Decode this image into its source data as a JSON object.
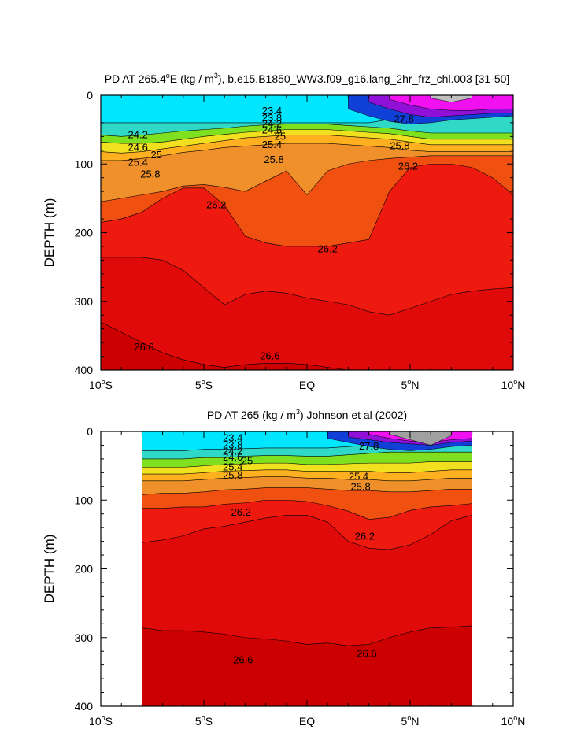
{
  "chart_data": [
    {
      "type": "contour",
      "title": "PD AT 265.4°E (kg / m³), b.e15.B1850_WW3.f09_g16.lang_2hr_frz_chl.003 [31-50]",
      "title_parts": {
        "pre": "PD AT 265.4",
        "deg": "o",
        "mid1": "E (kg / m",
        "sup": "3",
        "post": "), b.e15.B1850_WW3.f09_g16.lang_2hr_frz_chl.003 [31-50]"
      },
      "ylabel": "DEPTH (m)",
      "xlim": [
        -10,
        10
      ],
      "ylim": [
        0,
        400
      ],
      "y_inverted": true,
      "x_ticks": [
        {
          "value": -10,
          "num": "10",
          "sup": "o",
          "hemi": "S"
        },
        {
          "value": -5,
          "num": "5",
          "sup": "o",
          "hemi": "S"
        },
        {
          "value": 0,
          "num": "EQ",
          "sup": "",
          "hemi": ""
        },
        {
          "value": 5,
          "num": "5",
          "sup": "o",
          "hemi": "N"
        },
        {
          "value": 10,
          "num": "10",
          "sup": "o",
          "hemi": "N"
        }
      ],
      "y_ticks": [
        "0",
        "100",
        "200",
        "300",
        "400"
      ],
      "data_extent": [
        -10,
        10
      ],
      "x": [
        -10,
        -9,
        -8,
        -7,
        -6,
        -5,
        -4,
        -3,
        -2,
        -1,
        0,
        1,
        2,
        3,
        4,
        5,
        6,
        7,
        8,
        9,
        10
      ],
      "fill_levels": [
        {
          "boundary": [
            40,
            40,
            40,
            40,
            40,
            40,
            40,
            40,
            40,
            40,
            40,
            40,
            40,
            40,
            35,
            32,
            30,
            30,
            30,
            30,
            30
          ],
          "color": "#00e6ff"
        },
        {
          "boundary": [
            58,
            60,
            58,
            55,
            52,
            50,
            48,
            45,
            43,
            42,
            42,
            42,
            44,
            46,
            48,
            52,
            55,
            55,
            55,
            55,
            55
          ],
          "color": "#30d8c8"
        },
        {
          "boundary": [
            68,
            70,
            70,
            68,
            64,
            60,
            57,
            54,
            52,
            50,
            50,
            50,
            52,
            54,
            56,
            60,
            64,
            64,
            64,
            64,
            64
          ],
          "color": "#7fe020"
        },
        {
          "boundary": [
            82,
            84,
            82,
            78,
            74,
            70,
            66,
            62,
            60,
            58,
            58,
            58,
            60,
            62,
            64,
            68,
            72,
            72,
            72,
            72,
            72
          ],
          "color": "#f0e020"
        },
        {
          "boundary": [
            95,
            95,
            92,
            88,
            83,
            80,
            76,
            74,
            72,
            70,
            70,
            70,
            72,
            74,
            76,
            80,
            82,
            82,
            82,
            82,
            82
          ],
          "color": "#ffb020"
        },
        {
          "boundary": [
            155,
            150,
            145,
            140,
            132,
            130,
            134,
            140,
            125,
            110,
            145,
            110,
            100,
            95,
            92,
            90,
            88,
            88,
            88,
            88,
            88
          ],
          "color": "#f0902a"
        },
        {
          "boundary": [
            185,
            180,
            170,
            150,
            135,
            135,
            160,
            205,
            215,
            220,
            220,
            220,
            215,
            210,
            140,
            105,
            100,
            100,
            105,
            120,
            145
          ],
          "color": "#f05010"
        },
        {
          "boundary": [
            236,
            236,
            236,
            240,
            255,
            280,
            305,
            290,
            285,
            288,
            295,
            300,
            305,
            315,
            320,
            310,
            300,
            290,
            285,
            282,
            280
          ],
          "color": "#ee1a10"
        },
        {
          "boundary": [
            330,
            345,
            360,
            375,
            385,
            392,
            396,
            392,
            390,
            390,
            392,
            396,
            400,
            400,
            400,
            400,
            400,
            400,
            400,
            400,
            400
          ],
          "color": "#e00a0a"
        },
        {
          "boundary": [
            400,
            400,
            400,
            400,
            400,
            400,
            400,
            400,
            400,
            400,
            400,
            400,
            400,
            400,
            400,
            400,
            400,
            400,
            400,
            400,
            400
          ],
          "color": "#cc0000"
        }
      ],
      "top_patches": [
        {
          "x": [
            2,
            3,
            4,
            5,
            6,
            7,
            8,
            9,
            10
          ],
          "bottom": [
            20,
            30,
            38,
            42,
            40,
            36,
            34,
            32,
            30
          ],
          "color": "#1040d8"
        },
        {
          "x": [
            3,
            4,
            5,
            6,
            7,
            8,
            9,
            10
          ],
          "bottom": [
            10,
            20,
            28,
            32,
            30,
            28,
            26,
            26
          ],
          "color": "#9010d8"
        },
        {
          "x": [
            4,
            5,
            6,
            7,
            8,
            9,
            10
          ],
          "bottom": [
            6,
            14,
            20,
            22,
            22,
            20,
            20
          ],
          "color": "#f010f0"
        },
        {
          "x": [
            6,
            7,
            8
          ],
          "bottom": [
            4,
            10,
            4
          ],
          "color": "#c0c0c0"
        }
      ],
      "line_labels": [
        {
          "text": "24.2",
          "x": -8.2,
          "y": 58
        },
        {
          "text": "24.6",
          "x": -8.2,
          "y": 76
        },
        {
          "text": "25",
          "x": -7.3,
          "y": 87
        },
        {
          "text": "25.4",
          "x": -8.2,
          "y": 98
        },
        {
          "text": "25.8",
          "x": -7.6,
          "y": 115
        },
        {
          "text": "23.4",
          "x": -1.7,
          "y": 23
        },
        {
          "text": "23.8",
          "x": -1.7,
          "y": 33
        },
        {
          "text": "24.2",
          "x": -1.7,
          "y": 42
        },
        {
          "text": "24.6",
          "x": -1.7,
          "y": 51
        },
        {
          "text": "25",
          "x": -1.3,
          "y": 60
        },
        {
          "text": "25.4",
          "x": -1.7,
          "y": 72
        },
        {
          "text": "25.8",
          "x": -1.6,
          "y": 94
        },
        {
          "text": "27.8",
          "x": 4.7,
          "y": 35
        },
        {
          "text": "25.8",
          "x": 4.5,
          "y": 74
        },
        {
          "text": "26.2",
          "x": 4.9,
          "y": 104
        },
        {
          "text": "26.2",
          "x": -4.4,
          "y": 160
        },
        {
          "text": "26.2",
          "x": 1.0,
          "y": 224
        },
        {
          "text": "26.6",
          "x": -7.9,
          "y": 367
        },
        {
          "text": "26.6",
          "x": -1.8,
          "y": 380
        }
      ]
    },
    {
      "type": "contour",
      "title": "PD AT 265 (kg / m³) Johnson et al (2002)",
      "title_parts": {
        "pre": "PD AT 265 (kg / m",
        "deg": "",
        "mid1": "",
        "sup": "3",
        "post": ") Johnson et al (2002)"
      },
      "ylabel": "DEPTH (m)",
      "xlim": [
        -10,
        10
      ],
      "ylim": [
        0,
        400
      ],
      "y_inverted": true,
      "x_ticks": [
        {
          "value": -10,
          "num": "10",
          "sup": "o",
          "hemi": "S"
        },
        {
          "value": -5,
          "num": "5",
          "sup": "o",
          "hemi": "S"
        },
        {
          "value": 0,
          "num": "EQ",
          "sup": "",
          "hemi": ""
        },
        {
          "value": 5,
          "num": "5",
          "sup": "o",
          "hemi": "N"
        },
        {
          "value": 10,
          "num": "10",
          "sup": "o",
          "hemi": "N"
        }
      ],
      "y_ticks": [
        "0",
        "100",
        "200",
        "300",
        "400"
      ],
      "data_extent": [
        -8,
        8
      ],
      "x": [
        -8,
        -7,
        -6,
        -5,
        -4,
        -3,
        -2,
        -1,
        0,
        1,
        2,
        3,
        4,
        5,
        6,
        7,
        8
      ],
      "fill_levels": [
        {
          "boundary": [
            28,
            28,
            28,
            26,
            26,
            25,
            24,
            24,
            24,
            24,
            22,
            20,
            18,
            18,
            18,
            18,
            18
          ],
          "color": "#00e6ff"
        },
        {
          "boundary": [
            40,
            40,
            40,
            38,
            38,
            36,
            35,
            35,
            36,
            36,
            34,
            32,
            30,
            30,
            30,
            30,
            30
          ],
          "color": "#30d8c8"
        },
        {
          "boundary": [
            52,
            52,
            52,
            50,
            48,
            47,
            46,
            46,
            48,
            48,
            47,
            46,
            46,
            46,
            44,
            44,
            44
          ],
          "color": "#7fe020"
        },
        {
          "boundary": [
            62,
            62,
            62,
            60,
            58,
            57,
            56,
            56,
            58,
            58,
            58,
            58,
            60,
            60,
            58,
            56,
            56
          ],
          "color": "#f0e020"
        },
        {
          "boundary": [
            72,
            72,
            72,
            70,
            68,
            67,
            66,
            66,
            68,
            68,
            70,
            70,
            72,
            72,
            70,
            68,
            68
          ],
          "color": "#ffb020"
        },
        {
          "boundary": [
            92,
            90,
            90,
            88,
            85,
            84,
            82,
            82,
            82,
            84,
            86,
            86,
            88,
            88,
            86,
            84,
            84
          ],
          "color": "#f0902a"
        },
        {
          "boundary": [
            112,
            112,
            110,
            110,
            106,
            104,
            100,
            100,
            102,
            108,
            116,
            128,
            125,
            115,
            110,
            108,
            105
          ],
          "color": "#f05010"
        },
        {
          "boundary": [
            162,
            158,
            152,
            142,
            138,
            132,
            126,
            122,
            122,
            132,
            160,
            170,
            172,
            165,
            150,
            130,
            122
          ],
          "color": "#ee1a10"
        },
        {
          "boundary": [
            286,
            290,
            290,
            292,
            295,
            300,
            302,
            305,
            310,
            308,
            312,
            310,
            300,
            292,
            286,
            285,
            283
          ],
          "color": "#e00a0a"
        },
        {
          "boundary": [
            400,
            400,
            400,
            400,
            400,
            400,
            400,
            400,
            400,
            400,
            400,
            400,
            400,
            400,
            400,
            400,
            400
          ],
          "color": "#cc0000"
        }
      ],
      "top_patches": [
        {
          "x": [
            1,
            2,
            3,
            4,
            5,
            6,
            7,
            8
          ],
          "bottom": [
            10,
            16,
            22,
            26,
            28,
            26,
            22,
            20
          ],
          "color": "#1040d8"
        },
        {
          "x": [
            2,
            3,
            4,
            5,
            6,
            7,
            8
          ],
          "bottom": [
            8,
            12,
            16,
            18,
            20,
            16,
            14
          ],
          "color": "#9010d8"
        },
        {
          "x": [
            3,
            4,
            5,
            6,
            7,
            8
          ],
          "bottom": [
            4,
            10,
            14,
            16,
            12,
            10
          ],
          "color": "#f010f0"
        },
        {
          "x": [
            4,
            5,
            6,
            7
          ],
          "bottom": [
            4,
            12,
            20,
            6
          ],
          "color": "#a0a0a0"
        }
      ],
      "line_labels": [
        {
          "text": "23.4",
          "x": -3.6,
          "y": 10
        },
        {
          "text": "23.8",
          "x": -3.6,
          "y": 20
        },
        {
          "text": "24.2",
          "x": -3.6,
          "y": 29
        },
        {
          "text": "24.6",
          "x": -3.6,
          "y": 38
        },
        {
          "text": "25",
          "x": -2.9,
          "y": 43
        },
        {
          "text": "25.4",
          "x": -3.6,
          "y": 52
        },
        {
          "text": "25.8",
          "x": -3.6,
          "y": 64
        },
        {
          "text": "27.8",
          "x": 3.0,
          "y": 22
        },
        {
          "text": "25.4",
          "x": 2.5,
          "y": 66
        },
        {
          "text": "25.8",
          "x": 2.6,
          "y": 81
        },
        {
          "text": "26.2",
          "x": -3.2,
          "y": 118
        },
        {
          "text": "26.2",
          "x": 2.8,
          "y": 153
        },
        {
          "text": "26.6",
          "x": -3.1,
          "y": 333
        },
        {
          "text": "26.6",
          "x": 2.9,
          "y": 324
        }
      ]
    }
  ]
}
